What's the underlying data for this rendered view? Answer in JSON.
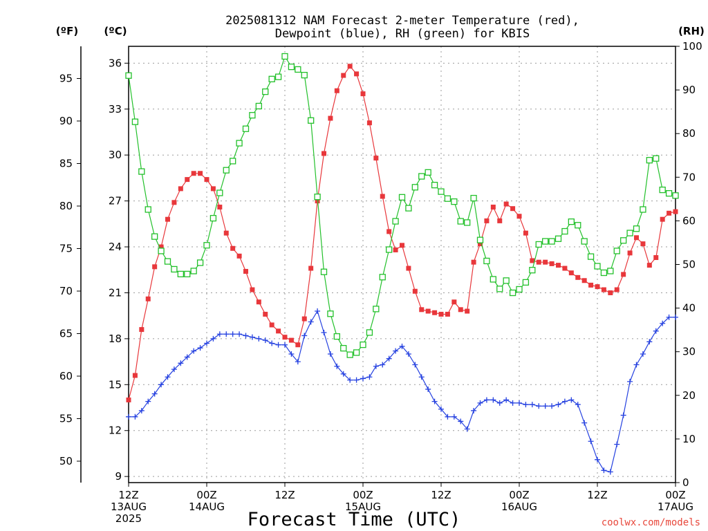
{
  "title_lines": [
    "2025081312 NAM Forecast 2-meter Temperature (red),",
    "Dewpoint (blue), RH (green) for KBIS"
  ],
  "credit": "coolwx.com/models",
  "chart_data": {
    "type": "line",
    "x_title": "Forecast Time (UTC)",
    "units": {
      "fahrenheit": "(ºF)",
      "celsius": "(ºC)",
      "rh": "(RH)"
    },
    "x_hours_range": [
      0,
      84
    ],
    "x_ticks": [
      {
        "hour": 0,
        "lines": [
          "12Z",
          "13AUG",
          "2025"
        ]
      },
      {
        "hour": 12,
        "lines": [
          "00Z",
          "14AUG"
        ]
      },
      {
        "hour": 24,
        "lines": [
          "12Z"
        ]
      },
      {
        "hour": 36,
        "lines": [
          "00Z",
          "15AUG"
        ]
      },
      {
        "hour": 48,
        "lines": [
          "12Z"
        ]
      },
      {
        "hour": 60,
        "lines": [
          "00Z",
          "16AUG"
        ]
      },
      {
        "hour": 72,
        "lines": [
          "12Z"
        ]
      },
      {
        "hour": 84,
        "lines": [
          "00Z",
          "17AUG"
        ]
      }
    ],
    "celsius_axis": {
      "range": [
        8.6,
        37.1
      ],
      "ticks": [
        9,
        12,
        15,
        18,
        21,
        24,
        27,
        30,
        33,
        36
      ]
    },
    "fahrenheit_axis": {
      "ticks": [
        50,
        55,
        60,
        65,
        70,
        75,
        80,
        85,
        90,
        95
      ]
    },
    "rh_axis": {
      "range": [
        0,
        100
      ],
      "ticks": [
        0,
        10,
        20,
        30,
        40,
        50,
        60,
        70,
        80,
        90,
        100
      ]
    },
    "grid": true,
    "series": [
      {
        "key": "temperature",
        "color": "#e8373b",
        "marker": "filled-square",
        "axis": "celsius",
        "x": [
          0,
          1,
          2,
          3,
          4,
          5,
          6,
          7,
          8,
          9,
          10,
          11,
          12,
          13,
          14,
          15,
          16,
          17,
          18,
          19,
          20,
          21,
          22,
          23,
          24,
          25,
          26,
          27,
          28,
          29,
          30,
          31,
          32,
          33,
          34,
          35,
          36,
          37,
          38,
          39,
          40,
          41,
          42,
          43,
          44,
          45,
          46,
          47,
          48,
          49,
          50,
          51,
          52,
          53,
          54,
          55,
          56,
          57,
          58,
          59,
          60,
          61,
          62,
          63,
          64,
          65,
          66,
          67,
          68,
          69,
          70,
          71,
          72,
          73,
          74,
          75,
          76,
          77,
          78,
          79,
          80,
          81,
          82,
          83,
          84
        ],
        "values": [
          14.0,
          15.6,
          18.6,
          20.6,
          22.7,
          24.0,
          25.8,
          26.9,
          27.8,
          28.4,
          28.8,
          28.8,
          28.4,
          27.8,
          26.6,
          24.9,
          23.9,
          23.4,
          22.4,
          21.2,
          20.4,
          19.6,
          18.9,
          18.5,
          18.1,
          17.9,
          17.6,
          19.3,
          22.6,
          27.0,
          30.1,
          32.4,
          34.2,
          35.2,
          35.8,
          35.3,
          34.0,
          32.1,
          29.8,
          27.3,
          25.0,
          23.8,
          24.1,
          22.6,
          21.1,
          19.9,
          19.8,
          19.7,
          19.6,
          19.6,
          20.4,
          19.9,
          19.8,
          23.0,
          24.2,
          25.7,
          26.6,
          25.7,
          26.8,
          26.5,
          26.0,
          24.9,
          23.1,
          23.0,
          23.0,
          22.9,
          22.8,
          22.6,
          22.3,
          22.0,
          21.8,
          21.5,
          21.4,
          21.2,
          21.0,
          21.2,
          22.2,
          23.6,
          24.6,
          24.2,
          22.8,
          23.3,
          25.8,
          26.2,
          26.3
        ]
      },
      {
        "key": "dewpoint",
        "color": "#2440e0",
        "marker": "plus",
        "axis": "celsius",
        "x": [
          0,
          1,
          2,
          3,
          4,
          5,
          6,
          7,
          8,
          9,
          10,
          11,
          12,
          13,
          14,
          15,
          16,
          17,
          18,
          19,
          20,
          21,
          22,
          23,
          24,
          25,
          26,
          27,
          28,
          29,
          30,
          31,
          32,
          33,
          34,
          35,
          36,
          37,
          38,
          39,
          40,
          41,
          42,
          43,
          44,
          45,
          46,
          47,
          48,
          49,
          50,
          51,
          52,
          53,
          54,
          55,
          56,
          57,
          58,
          59,
          60,
          61,
          62,
          63,
          64,
          65,
          66,
          67,
          68,
          69,
          70,
          71,
          72,
          73,
          74,
          75,
          76,
          77,
          78,
          79,
          80,
          81,
          82,
          83,
          84
        ],
        "values": [
          12.9,
          12.9,
          13.3,
          13.9,
          14.4,
          15.0,
          15.5,
          16.0,
          16.4,
          16.8,
          17.2,
          17.4,
          17.7,
          18.0,
          18.3,
          18.3,
          18.3,
          18.3,
          18.2,
          18.1,
          18.0,
          17.9,
          17.7,
          17.6,
          17.6,
          17.0,
          16.5,
          18.2,
          19.1,
          19.8,
          18.4,
          17.0,
          16.2,
          15.7,
          15.3,
          15.3,
          15.4,
          15.5,
          16.2,
          16.3,
          16.7,
          17.2,
          17.5,
          17.0,
          16.3,
          15.5,
          14.7,
          13.9,
          13.4,
          12.9,
          12.9,
          12.6,
          12.1,
          13.3,
          13.8,
          14.0,
          14.0,
          13.8,
          14.0,
          13.8,
          13.8,
          13.7,
          13.7,
          13.6,
          13.6,
          13.6,
          13.7,
          13.9,
          14.0,
          13.7,
          12.5,
          11.3,
          10.1,
          9.4,
          9.3,
          11.1,
          13.0,
          15.2,
          16.3,
          17.0,
          17.8,
          18.5,
          19.0,
          19.4,
          19.4
        ]
      },
      {
        "key": "rh",
        "color": "#22c02a",
        "marker": "open-square",
        "axis": "rh",
        "x": [
          0,
          1,
          2,
          3,
          4,
          5,
          6,
          7,
          8,
          9,
          10,
          11,
          12,
          13,
          14,
          15,
          16,
          17,
          18,
          19,
          20,
          21,
          22,
          23,
          24,
          25,
          26,
          27,
          28,
          29,
          30,
          31,
          32,
          33,
          34,
          35,
          36,
          37,
          38,
          39,
          40,
          41,
          42,
          43,
          44,
          45,
          46,
          47,
          48,
          49,
          50,
          51,
          52,
          53,
          54,
          55,
          56,
          57,
          58,
          59,
          60,
          61,
          62,
          63,
          64,
          65,
          66,
          67,
          68,
          69,
          70,
          71,
          72,
          73,
          74,
          75,
          76,
          77,
          78,
          79,
          80,
          81,
          82,
          83,
          84
        ],
        "values": [
          93.3,
          82.7,
          71.3,
          62.6,
          56.4,
          53.1,
          50.7,
          48.9,
          47.8,
          47.8,
          48.5,
          50.4,
          54.4,
          60.6,
          66.4,
          71.6,
          73.7,
          77.8,
          81.1,
          84.2,
          86.3,
          89.6,
          92.5,
          93.0,
          97.7,
          95.3,
          94.7,
          93.4,
          83.0,
          65.5,
          48.3,
          38.7,
          33.5,
          30.8,
          29.3,
          29.8,
          31.6,
          34.4,
          39.8,
          47.1,
          53.4,
          59.9,
          65.4,
          62.9,
          67.7,
          70.2,
          71.1,
          68.2,
          66.7,
          65.1,
          64.4,
          59.9,
          59.6,
          65.2,
          55.6,
          50.8,
          46.6,
          44.4,
          46.3,
          43.5,
          44.3,
          45.9,
          48.7,
          54.6,
          55.3,
          55.3,
          55.9,
          57.6,
          59.8,
          59.0,
          55.3,
          51.8,
          49.6,
          48.1,
          48.5,
          53.1,
          55.5,
          57.2,
          58.2,
          62.6,
          73.9,
          74.3,
          67.1,
          66.3,
          65.8
        ]
      }
    ]
  }
}
